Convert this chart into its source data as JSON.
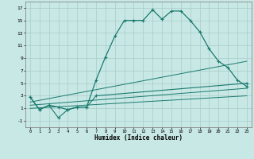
{
  "xlabel": "Humidex (Indice chaleur)",
  "line_color": "#1a7a6e",
  "bg_color": "#c8e8e5",
  "grid_color": "#a8ccc8",
  "xlim": [
    -0.5,
    23.5
  ],
  "ylim": [
    -2,
    18
  ],
  "xticks": [
    0,
    1,
    2,
    3,
    4,
    5,
    6,
    7,
    8,
    9,
    10,
    11,
    12,
    13,
    14,
    15,
    16,
    17,
    18,
    19,
    20,
    21,
    22,
    23
  ],
  "yticks": [
    -1,
    1,
    3,
    5,
    7,
    9,
    11,
    13,
    15,
    17
  ],
  "main_line": {
    "x": [
      0,
      1,
      2,
      3,
      4,
      5,
      6,
      7,
      8,
      9,
      10,
      11,
      12,
      13,
      14,
      15,
      16,
      17,
      18,
      19,
      20,
      21,
      22,
      23
    ],
    "y": [
      2.8,
      0.8,
      1.5,
      1.2,
      0.8,
      1.2,
      1.2,
      5.5,
      9.2,
      12.5,
      15.0,
      15.0,
      15.0,
      16.7,
      15.2,
      16.5,
      16.5,
      15.0,
      13.2,
      10.5,
      8.5,
      7.5,
      5.5,
      4.5
    ]
  },
  "zigzag_line": {
    "x": [
      0,
      1,
      2,
      3,
      4,
      5,
      6,
      7,
      23
    ],
    "y": [
      2.8,
      0.8,
      1.5,
      -0.5,
      0.8,
      1.2,
      1.2,
      3.0,
      5.0
    ]
  },
  "diag_lines": [
    {
      "x": [
        0,
        23
      ],
      "y": [
        2.0,
        8.5
      ]
    },
    {
      "x": [
        0,
        23
      ],
      "y": [
        1.5,
        4.2
      ]
    },
    {
      "x": [
        0,
        23
      ],
      "y": [
        1.0,
        3.0
      ]
    }
  ]
}
